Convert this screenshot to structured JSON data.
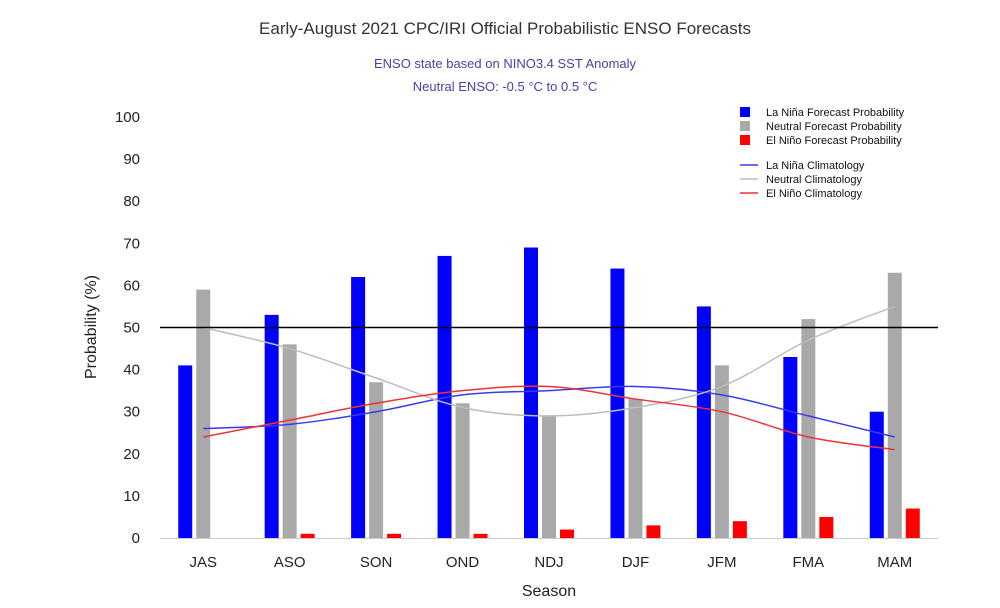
{
  "chart_data": {
    "type": "bar",
    "title": "Early-August 2021 CPC/IRI Official Probabilistic ENSO Forecasts",
    "subtitle_lines": [
      "ENSO state based on NINO3.4 SST Anomaly",
      "Neutral ENSO: -0.5 °C to 0.5 °C"
    ],
    "xlabel": "Season",
    "ylabel": "Probability (%)",
    "ylim": [
      0,
      100
    ],
    "yticks": [
      0,
      10,
      20,
      30,
      40,
      50,
      60,
      70,
      80,
      90,
      100
    ],
    "categories": [
      "JAS",
      "ASO",
      "SON",
      "OND",
      "NDJ",
      "DJF",
      "JFM",
      "FMA",
      "MAM"
    ],
    "reference_line": 50,
    "grid": false,
    "legend_position": "top-right",
    "series": [
      {
        "name": "La Niña Forecast Probability",
        "kind": "bar",
        "color": "#0000ff",
        "values": [
          41,
          53,
          62,
          67,
          69,
          64,
          55,
          43,
          30
        ]
      },
      {
        "name": "Neutral Forecast Probability",
        "kind": "bar",
        "color": "#a9a9a9",
        "values": [
          59,
          46,
          37,
          32,
          29,
          33,
          41,
          52,
          63
        ]
      },
      {
        "name": "El Niño Forecast Probability",
        "kind": "bar",
        "color": "#ff0000",
        "values": [
          0,
          1,
          1,
          1,
          2,
          3,
          4,
          5,
          7
        ]
      },
      {
        "name": "La Niña Climatology",
        "kind": "line",
        "color": "#3a3af0",
        "values": [
          26,
          27,
          30,
          34,
          35,
          36,
          34,
          29,
          24
        ]
      },
      {
        "name": "Neutral Climatology",
        "kind": "line",
        "color": "#bdbdbd",
        "values": [
          50,
          45,
          38,
          31,
          29,
          31,
          36,
          47,
          55
        ]
      },
      {
        "name": "El Niño Climatology",
        "kind": "line",
        "color": "#ee3333",
        "values": [
          24,
          28,
          32,
          35,
          36,
          33,
          30,
          24,
          21
        ]
      }
    ]
  }
}
